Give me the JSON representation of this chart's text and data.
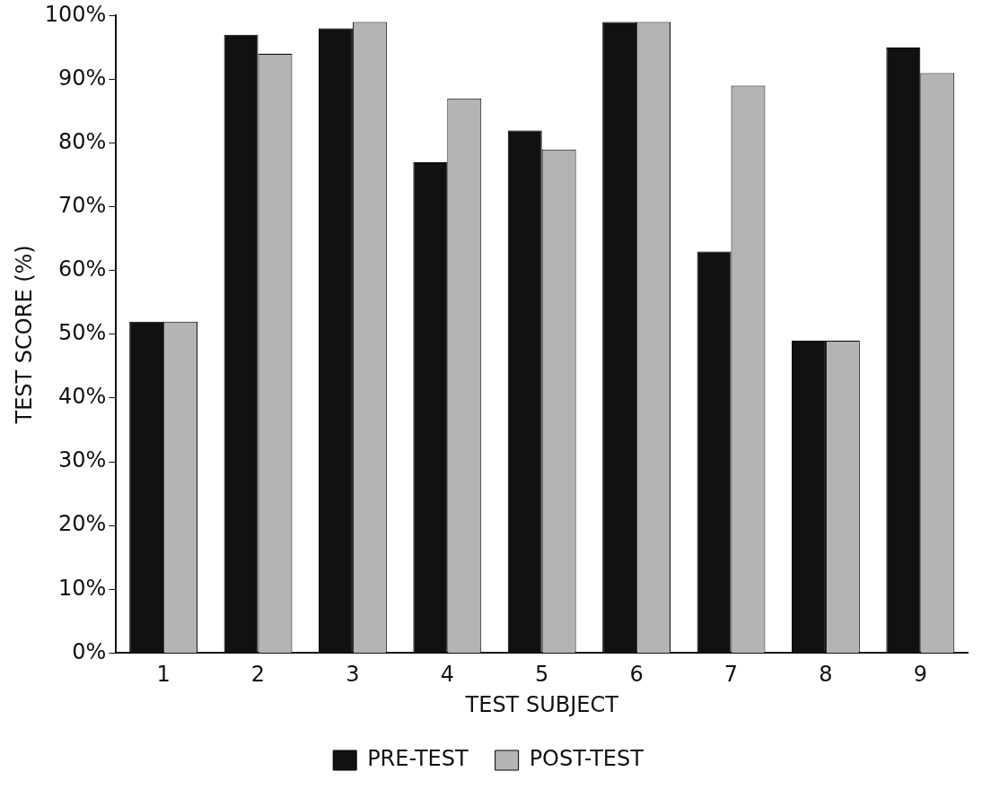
{
  "chart_data": {
    "type": "bar",
    "xlabel": "TEST SUBJECT",
    "ylabel": "TEST SCORE (%)",
    "categories": [
      "1",
      "2",
      "3",
      "4",
      "5",
      "6",
      "7",
      "8",
      "9"
    ],
    "series": [
      {
        "name": "PRE-TEST",
        "color": "#111111",
        "values": [
          52,
          97,
          98,
          77,
          82,
          99,
          63,
          49,
          95
        ]
      },
      {
        "name": "POST-TEST",
        "color": "#b4b4b4",
        "values": [
          52,
          94,
          99,
          87,
          79,
          99,
          89,
          49,
          91
        ]
      }
    ],
    "ylim": [
      0,
      100
    ],
    "yticks": [
      {
        "value": 0,
        "label": "0%"
      },
      {
        "value": 10,
        "label": "10%"
      },
      {
        "value": 20,
        "label": "20%"
      },
      {
        "value": 30,
        "label": "30%"
      },
      {
        "value": 40,
        "label": "40%"
      },
      {
        "value": 50,
        "label": "50%"
      },
      {
        "value": 60,
        "label": "60%"
      },
      {
        "value": 70,
        "label": "70%"
      },
      {
        "value": 80,
        "label": "80%"
      },
      {
        "value": 90,
        "label": "90%"
      },
      {
        "value": 100,
        "label": "100%"
      }
    ],
    "grid": false,
    "legend": "bottom"
  }
}
